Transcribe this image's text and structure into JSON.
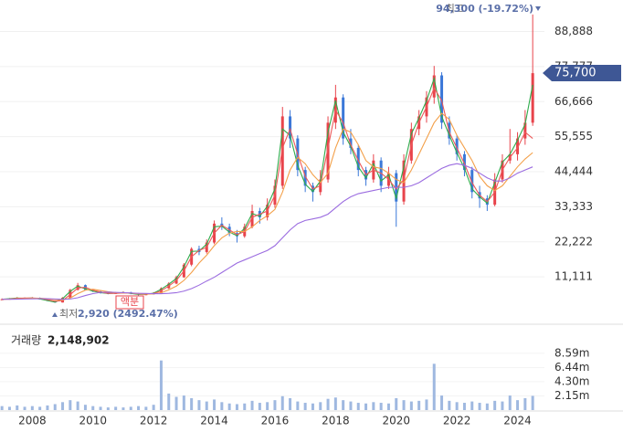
{
  "chart_data": {
    "type": "candlestick",
    "categories": [
      null,
      null,
      null,
      null,
      "2008",
      null,
      null,
      null,
      null,
      null,
      null,
      null,
      "2010",
      null,
      null,
      null,
      null,
      null,
      null,
      null,
      "2012",
      null,
      null,
      null,
      null,
      null,
      null,
      null,
      "2014",
      null,
      null,
      null,
      null,
      null,
      null,
      null,
      "2016",
      null,
      null,
      null,
      null,
      null,
      null,
      null,
      "2018",
      null,
      null,
      null,
      null,
      null,
      null,
      null,
      "2020",
      null,
      null,
      null,
      null,
      null,
      null,
      null,
      "2022",
      null,
      null,
      null,
      null,
      null,
      null,
      null,
      "2024",
      null,
      null
    ],
    "candles": [
      [
        3900,
        4300,
        3800,
        4000
      ],
      [
        4000,
        4400,
        3900,
        4200
      ],
      [
        4200,
        4700,
        4100,
        4500
      ],
      [
        4500,
        4600,
        4100,
        4300
      ],
      [
        4300,
        4700,
        4200,
        4500
      ],
      [
        4500,
        4600,
        3900,
        4000
      ],
      [
        4000,
        4100,
        3400,
        3500
      ],
      [
        3500,
        3600,
        2920,
        3000
      ],
      [
        3000,
        4700,
        3000,
        4500
      ],
      [
        4500,
        7300,
        4400,
        7000
      ],
      [
        7000,
        9200,
        6800,
        8500
      ],
      [
        8500,
        8700,
        6800,
        7000
      ],
      [
        7000,
        7200,
        6300,
        6500
      ],
      [
        6500,
        6800,
        5800,
        6000
      ],
      [
        6000,
        6300,
        5600,
        5800
      ],
      [
        5800,
        6300,
        5700,
        6000
      ],
      [
        6000,
        6500,
        5900,
        6200
      ],
      [
        6200,
        6400,
        5600,
        5800
      ],
      [
        5800,
        6000,
        5200,
        5500
      ],
      [
        5500,
        5900,
        5300,
        5600
      ],
      [
        5600,
        6300,
        5500,
        6000
      ],
      [
        6000,
        7800,
        5900,
        7500
      ],
      [
        7500,
        9400,
        7300,
        9000
      ],
      [
        9000,
        11500,
        8800,
        11000
      ],
      [
        11000,
        15500,
        10800,
        15000
      ],
      [
        15000,
        20500,
        14500,
        20000
      ],
      [
        20000,
        21000,
        18000,
        19000
      ],
      [
        19000,
        23000,
        18500,
        22000
      ],
      [
        22000,
        29000,
        21500,
        28000
      ],
      [
        28000,
        30000,
        26000,
        27000
      ],
      [
        27000,
        28000,
        24000,
        25000
      ],
      [
        25000,
        26000,
        22000,
        24000
      ],
      [
        24000,
        28000,
        23500,
        27000
      ],
      [
        27000,
        34000,
        26500,
        32000
      ],
      [
        32000,
        33000,
        28000,
        30000
      ],
      [
        30000,
        36000,
        29000,
        34000
      ],
      [
        34000,
        42000,
        33000,
        40000
      ],
      [
        40000,
        65000,
        39000,
        62000
      ],
      [
        62000,
        64000,
        52000,
        55000
      ],
      [
        55000,
        56000,
        43000,
        45000
      ],
      [
        45000,
        46000,
        38000,
        40000
      ],
      [
        40000,
        41000,
        35000,
        38000
      ],
      [
        38000,
        45000,
        37000,
        42000
      ],
      [
        42000,
        62000,
        41000,
        60000
      ],
      [
        60000,
        72000,
        58000,
        68000
      ],
      [
        68000,
        69000,
        53000,
        55000
      ],
      [
        55000,
        58000,
        50000,
        52000
      ],
      [
        52000,
        53000,
        43000,
        45000
      ],
      [
        45000,
        46000,
        40000,
        42000
      ],
      [
        42000,
        50000,
        41000,
        48000
      ],
      [
        48000,
        49000,
        38000,
        40000
      ],
      [
        40000,
        46000,
        39000,
        44000
      ],
      [
        44000,
        45000,
        27000,
        35000
      ],
      [
        35000,
        50000,
        34000,
        48000
      ],
      [
        48000,
        60000,
        47000,
        58000
      ],
      [
        58000,
        64000,
        56000,
        62000
      ],
      [
        62000,
        70000,
        60000,
        68000
      ],
      [
        68000,
        78000,
        66000,
        75000
      ],
      [
        75000,
        76000,
        58000,
        60000
      ],
      [
        60000,
        62000,
        53000,
        55000
      ],
      [
        55000,
        56000,
        48000,
        50000
      ],
      [
        50000,
        51000,
        43000,
        45000
      ],
      [
        45000,
        46000,
        36000,
        38000
      ],
      [
        38000,
        40000,
        33000,
        36000
      ],
      [
        36000,
        37000,
        32000,
        34000
      ],
      [
        34000,
        44000,
        33500,
        42000
      ],
      [
        42000,
        50000,
        41000,
        48000
      ],
      [
        48000,
        58000,
        47000,
        50000
      ],
      [
        50000,
        57000,
        48000,
        55000
      ],
      [
        55000,
        64000,
        53000,
        60000
      ],
      [
        60000,
        94300,
        59000,
        75700
      ]
    ],
    "up_color": "#e8434b",
    "down_color": "#3b78d8",
    "series": [
      {
        "color": "#2eaa4a",
        "values": [
          4000,
          4200,
          4400,
          4300,
          4400,
          4100,
          3600,
          3100,
          4200,
          6500,
          8200,
          7300,
          6600,
          6100,
          5850,
          5950,
          6150,
          5850,
          5550,
          5600,
          5950,
          7200,
          8800,
          10600,
          14300,
          19200,
          19300,
          21500,
          27000,
          27200,
          25300,
          24200,
          26500,
          31200,
          30300,
          33500,
          39000,
          58000,
          56000,
          46500,
          40500,
          38200,
          41500,
          57000,
          67000,
          57000,
          52500,
          46000,
          42500,
          47000,
          41500,
          43500,
          36000,
          46000,
          56500,
          61500,
          67000,
          74000,
          62000,
          56000,
          50500,
          45500,
          39000,
          36500,
          34500,
          41000,
          47500,
          50000,
          54500,
          59500,
          72000
        ]
      },
      {
        "color": "#ec5a5a",
        "values": [
          4000,
          4100,
          4300,
          4400,
          4400,
          4300,
          3900,
          3400,
          3600,
          5500,
          7600,
          7800,
          6900,
          6300,
          5900,
          5900,
          6000,
          6000,
          5700,
          5600,
          5800,
          6700,
          8200,
          10000,
          13000,
          17500,
          19500,
          20500,
          25000,
          27500,
          26000,
          24500,
          25500,
          30000,
          31000,
          32000,
          37000,
          52000,
          58000,
          50000,
          43000,
          39000,
          40000,
          52000,
          64000,
          60000,
          53000,
          48000,
          43500,
          45000,
          44000,
          42000,
          39000,
          42000,
          53000,
          60000,
          65000,
          71000,
          67000,
          57000,
          52000,
          47000,
          41000,
          37000,
          35000,
          38000,
          45000,
          49000,
          52000,
          57000,
          55000
        ]
      },
      {
        "color": "#f3a04a",
        "values": [
          4000,
          4050,
          4150,
          4250,
          4350,
          4350,
          4200,
          3900,
          3800,
          4400,
          5800,
          6900,
          7200,
          6800,
          6400,
          6100,
          6000,
          5950,
          5800,
          5700,
          5700,
          6100,
          7000,
          8200,
          10000,
          12500,
          15500,
          18000,
          21000,
          23500,
          25000,
          25500,
          25500,
          27000,
          29000,
          30500,
          32500,
          38000,
          45000,
          49000,
          47000,
          43500,
          41000,
          44000,
          52000,
          58000,
          57000,
          53000,
          48000,
          46000,
          45500,
          44000,
          42000,
          41000,
          45000,
          50000,
          55000,
          60000,
          63000,
          61000,
          56000,
          52000,
          48000,
          43000,
          40000,
          38500,
          40000,
          43000,
          46000,
          48500,
          50500
        ]
      },
      {
        "color": "#9b6ce0",
        "values": [
          4000,
          4000,
          4050,
          4100,
          4150,
          4200,
          4200,
          4100,
          4000,
          4100,
          4500,
          5200,
          5800,
          6200,
          6300,
          6200,
          6100,
          6000,
          5900,
          5850,
          5800,
          5800,
          5900,
          6100,
          6600,
          7400,
          8500,
          9800,
          11000,
          12500,
          14000,
          15500,
          16500,
          17500,
          18500,
          19500,
          21000,
          23500,
          26000,
          28000,
          29000,
          29500,
          30000,
          31000,
          33000,
          35000,
          36500,
          37500,
          38000,
          38500,
          39000,
          39500,
          39500,
          39500,
          40000,
          41000,
          42500,
          44000,
          45500,
          46500,
          47000,
          46500,
          45500,
          44000,
          42500,
          41500,
          41500,
          42500,
          44000,
          45000,
          46000
        ]
      }
    ],
    "ylim": [
      -1000,
      96000
    ],
    "yticks": [
      {
        "value": 11111,
        "label": "11,111"
      },
      {
        "value": 22222,
        "label": "22,222"
      },
      {
        "value": 33333,
        "label": "33,333"
      },
      {
        "value": 44444,
        "label": "44,444"
      },
      {
        "value": 55555,
        "label": "55,555"
      },
      {
        "value": 66666,
        "label": "66,666"
      },
      {
        "value": 77777,
        "label": "77,777"
      },
      {
        "value": 88888,
        "label": "88,888"
      }
    ],
    "grid": true,
    "volume": {
      "color": "#9fb8e0",
      "values": [
        600000,
        500000,
        700000,
        500000,
        600000,
        500000,
        700000,
        900000,
        1200000,
        1500000,
        1300000,
        800000,
        600000,
        500000,
        400000,
        500000,
        400000,
        500000,
        600000,
        500000,
        800000,
        7500000,
        2500000,
        2000000,
        2200000,
        1800000,
        1500000,
        1300000,
        1600000,
        1200000,
        1000000,
        900000,
        1000000,
        1400000,
        1100000,
        1200000,
        1500000,
        2100000,
        1800000,
        1300000,
        1100000,
        1000000,
        1200000,
        1700000,
        1900000,
        1500000,
        1300000,
        1100000,
        1000000,
        1200000,
        1100000,
        1000000,
        1800000,
        1500000,
        1300000,
        1400000,
        1600000,
        7000000,
        2200000,
        1400000,
        1200000,
        1100000,
        1300000,
        1100000,
        1000000,
        1400000,
        1300000,
        2200000,
        1500000,
        1800000,
        2148902
      ],
      "ylim": [
        0,
        11600000
      ],
      "yticks": [
        {
          "value": 2150000,
          "label": "2.15m"
        },
        {
          "value": 4300000,
          "label": "4.30m"
        },
        {
          "value": 6440000,
          "label": "6.44m"
        },
        {
          "value": 8590000,
          "label": "8.59m"
        }
      ]
    },
    "annotations": {
      "high_label": "최고",
      "high_value": "94,300 (-19.72%)",
      "low_label": "최저",
      "low_value": "2,920 (2492.47%)",
      "split": "액분",
      "volume_label": "거래량",
      "volume_value": "2,148,902",
      "current_price": "75,700"
    }
  }
}
